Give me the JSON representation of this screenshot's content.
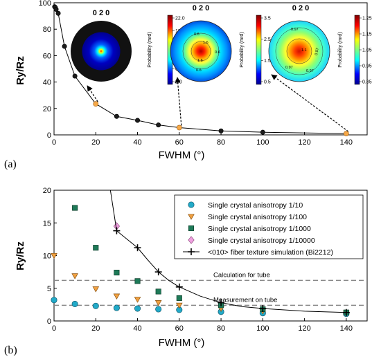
{
  "panel_a": {
    "label": "(a)",
    "insets": [
      {
        "title": "0 2 0",
        "colorbar_label": "",
        "ticks": []
      },
      {
        "title": "0 2 0",
        "colorbar_label": "Probability (mrd)",
        "ticks": [
          "22.0",
          "18.0",
          "14.0",
          "10.0",
          "6.0",
          "2.0"
        ],
        "contour_labels": [
          "0.6",
          "1.6",
          "0.6",
          "1.6",
          "0.6"
        ]
      },
      {
        "title": "0 2 0",
        "colorbar_label": "Probability (mrd)",
        "ticks": [
          "3.5",
          "2.5",
          "1.5",
          "0.5"
        ],
        "contour_labels": [
          "0.97",
          "1.1",
          "0.97",
          "0.97",
          "0.97"
        ]
      },
      {
        "title": "",
        "colorbar_label": "Probability (mrd)",
        "ticks": [
          "1.25",
          "1.15",
          "1.05",
          "0.95",
          "0.85"
        ]
      }
    ]
  },
  "panel_b": {
    "label": "(b)",
    "annotations": [
      "Calculation for tube",
      "Measurement on tube"
    ]
  },
  "colors": {
    "gray_marker": "#1c1c1c",
    "orange_marker": "#f5a848",
    "cyan": "#22aac8",
    "orange_tri": "#f0a040",
    "green_sq": "#1e7a58",
    "pink_dia": "#f0a0e0",
    "dashed": "#888888"
  },
  "chart_data": [
    {
      "type": "line",
      "xlabel": "FWHM (°)",
      "ylabel": "Ry/Rz",
      "xlim": [
        0,
        150
      ],
      "ylim": [
        0,
        100
      ],
      "xticks": [
        0,
        20,
        40,
        60,
        80,
        100,
        120,
        140
      ],
      "yticks": [
        0,
        20,
        40,
        60,
        80,
        100
      ],
      "grid": false,
      "series": [
        {
          "x": [
            0.3,
            0.6,
            1,
            2,
            5,
            10,
            20,
            30,
            40,
            50,
            60,
            80,
            100,
            140
          ],
          "y": [
            97,
            96.5,
            95,
            92,
            67,
            44.5,
            23.5,
            14,
            11,
            7.5,
            5.5,
            3,
            2,
            1
          ],
          "highlighted_x": [
            20,
            60,
            140
          ]
        }
      ]
    },
    {
      "type": "scatter",
      "xlabel": "FWHM (°)",
      "ylabel": "Ry/Rz",
      "xlim": [
        0,
        150
      ],
      "ylim": [
        0,
        20
      ],
      "xticks": [
        0,
        20,
        40,
        60,
        80,
        100,
        120,
        140
      ],
      "yticks": [
        0,
        5,
        10,
        15,
        20
      ],
      "grid": false,
      "legend_position": "top-right",
      "reference_lines": [
        {
          "label": "Calculation for tube",
          "y": 6.2
        },
        {
          "label": "Measurement on tube",
          "y": 2.4
        }
      ],
      "series": [
        {
          "name": "Single crystal anisotropy 1/10",
          "marker": "circle",
          "x": [
            0,
            10,
            20,
            30,
            40,
            50,
            60,
            80,
            100,
            140
          ],
          "y": [
            3.2,
            2.6,
            2.3,
            2.0,
            1.9,
            1.8,
            1.7,
            1.4,
            1.2,
            1.1
          ]
        },
        {
          "name": "Single crystal anisotropy 1/100",
          "marker": "triangle",
          "x": [
            0,
            10,
            20,
            30,
            40,
            50,
            60,
            80,
            100,
            140
          ],
          "y": [
            10.0,
            6.9,
            4.9,
            3.8,
            3.3,
            2.8,
            2.4,
            1.9,
            1.5,
            1.2
          ]
        },
        {
          "name": "Single crystal anisotropy 1/1000",
          "marker": "square",
          "x": [
            10,
            20,
            30,
            40,
            50,
            60,
            80,
            100,
            140
          ],
          "y": [
            17.3,
            11.2,
            7.4,
            6.1,
            4.5,
            3.5,
            2.4,
            1.8,
            1.3
          ]
        },
        {
          "name": "Single crystal anisotropy 1/10000",
          "marker": "diamond",
          "x": [
            30
          ],
          "y": [
            14.5
          ]
        },
        {
          "name": "<010> fiber texture simulation (Bi2212)",
          "marker": "cross-line",
          "x": [
            30,
            40,
            50,
            60,
            80,
            100,
            140
          ],
          "y": [
            13.8,
            11.2,
            7.5,
            5.2,
            2.8,
            1.9,
            1.3
          ],
          "curve_x": [
            27,
            30,
            35,
            40,
            45,
            50,
            55,
            60,
            70,
            80,
            90,
            100,
            120,
            140
          ],
          "curve_y": [
            21,
            13.8,
            12.5,
            11.2,
            9.3,
            7.5,
            6.2,
            5.2,
            3.8,
            2.8,
            2.2,
            1.9,
            1.5,
            1.3
          ]
        }
      ]
    }
  ]
}
